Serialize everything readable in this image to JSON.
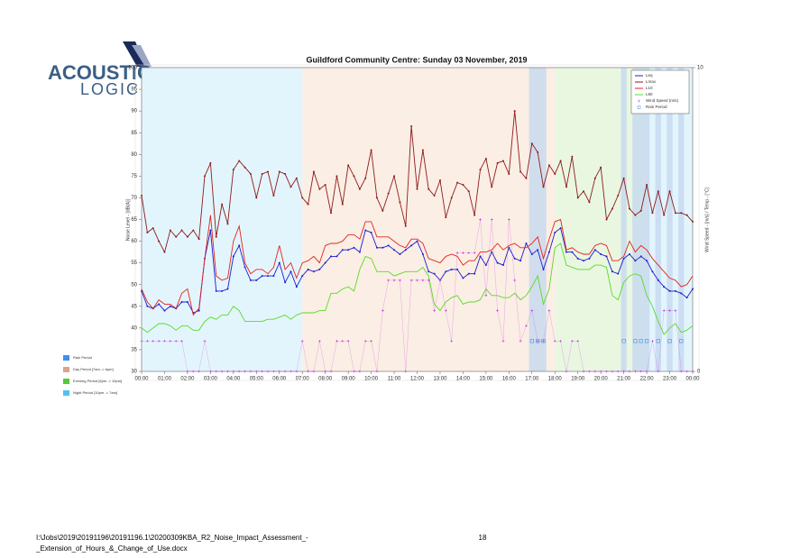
{
  "logo": {
    "line1": "ACOUSTIC",
    "line2": "LOGIC"
  },
  "chart_data": {
    "type": "line",
    "title": "Guildford Community Centre: Sunday 03 November, 2019",
    "y_label": "Noise Level - [dB(A)]",
    "y2_label": "Wind Speed - [m/s] / Temp - [°C]",
    "xlim": [
      0,
      24
    ],
    "xticks": [
      {
        "value": 0,
        "label": "00:00"
      },
      {
        "value": 1,
        "label": "01:00"
      },
      {
        "value": 2,
        "label": "02:00"
      },
      {
        "value": 3,
        "label": "03:00"
      },
      {
        "value": 4,
        "label": "04:00"
      },
      {
        "value": 5,
        "label": "05:00"
      },
      {
        "value": 6,
        "label": "06:00"
      },
      {
        "value": 7,
        "label": "07:00"
      },
      {
        "value": 8,
        "label": "08:00"
      },
      {
        "value": 9,
        "label": "09:00"
      },
      {
        "value": 10,
        "label": "10:00"
      },
      {
        "value": 11,
        "label": "11:00"
      },
      {
        "value": 12,
        "label": "12:00"
      },
      {
        "value": 13,
        "label": "13:00"
      },
      {
        "value": 14,
        "label": "14:00"
      },
      {
        "value": 15,
        "label": "15:00"
      },
      {
        "value": 16,
        "label": "16:00"
      },
      {
        "value": 17,
        "label": "17:00"
      },
      {
        "value": 18,
        "label": "18:00"
      },
      {
        "value": 19,
        "label": "19:00"
      },
      {
        "value": 20,
        "label": "20:00"
      },
      {
        "value": 21,
        "label": "21:00"
      },
      {
        "value": 22,
        "label": "22:00"
      },
      {
        "value": 23,
        "label": "23:00"
      },
      {
        "value": 24,
        "label": "00:00"
      }
    ],
    "ylim": [
      30,
      100
    ],
    "yticks": [
      30,
      35,
      40,
      45,
      50,
      55,
      60,
      65,
      70,
      75,
      80,
      85,
      90,
      95,
      100
    ],
    "y2lim": [
      0,
      10
    ],
    "y2ticks": [
      0,
      10
    ],
    "legend": "top-right",
    "periods": [
      {
        "name": "Day Period [7am -> 6pm]",
        "color": "#fbeee4",
        "key": "#d9a58a",
        "ranges": [
          [
            7,
            18
          ]
        ]
      },
      {
        "name": "Evening Period [6pm -> 10pm]",
        "color": "#e9f7e1",
        "key": "#59c63a",
        "ranges": [
          [
            18,
            22
          ]
        ]
      },
      {
        "name": "Night Period [10pm -> 7am]",
        "color": "#e3f5fc",
        "key": "#4fc4f0",
        "ranges": [
          [
            0,
            7
          ],
          [
            22,
            24
          ]
        ]
      }
    ],
    "x": [
      0,
      0.25,
      0.5,
      0.75,
      1,
      1.25,
      1.5,
      1.75,
      2,
      2.25,
      2.5,
      2.75,
      3,
      3.25,
      3.5,
      3.75,
      4,
      4.25,
      4.5,
      4.75,
      5,
      5.25,
      5.5,
      5.75,
      6,
      6.25,
      6.5,
      6.75,
      7,
      7.25,
      7.5,
      7.75,
      8,
      8.25,
      8.5,
      8.75,
      9,
      9.25,
      9.5,
      9.75,
      10,
      10.25,
      10.5,
      10.75,
      11,
      11.25,
      11.5,
      11.75,
      12,
      12.25,
      12.5,
      12.75,
      13,
      13.25,
      13.5,
      13.75,
      14,
      14.25,
      14.5,
      14.75,
      15,
      15.25,
      15.5,
      15.75,
      16,
      16.25,
      16.5,
      16.75,
      17,
      17.25,
      17.5,
      17.75,
      18,
      18.25,
      18.5,
      18.75,
      19,
      19.25,
      19.5,
      19.75,
      20,
      20.25,
      20.5,
      20.75,
      21,
      21.25,
      21.5,
      21.75,
      22,
      22.25,
      22.5,
      22.75,
      23,
      23.25,
      23.5,
      23.75,
      24
    ],
    "series": [
      {
        "name": "Leq",
        "color": "#1c1ccf",
        "marker": "circle",
        "values": [
          48.5,
          45,
          44.5,
          45.5,
          44,
          45,
          44.5,
          46,
          46,
          43.5,
          44,
          56,
          62.5,
          48.5,
          48.5,
          49,
          56.5,
          59,
          54,
          51,
          51,
          52,
          52,
          52,
          55,
          50.5,
          53,
          49.5,
          52,
          53.5,
          53,
          53.5,
          55,
          56.5,
          56.5,
          58,
          58,
          58.5,
          57.5,
          62.5,
          62,
          58.5,
          58.5,
          59,
          58,
          57,
          58,
          59,
          60,
          57,
          53,
          52.5,
          51,
          53,
          53.5,
          53.5,
          51.5,
          52.5,
          52.5,
          56.5,
          54.5,
          57.5,
          55,
          54.5,
          58.5,
          56,
          55.5,
          59.5,
          57,
          58,
          53.5,
          57.5,
          62,
          63,
          57.5,
          57.5,
          56,
          55.5,
          56,
          58,
          57,
          56.5,
          53,
          52.5,
          56,
          57,
          55.5,
          56.5,
          55.5,
          53,
          51,
          49.5,
          48.5,
          48.5,
          48,
          47,
          49
        ]
      },
      {
        "name": "Lmax",
        "color": "#8c1c1c",
        "marker": "circle",
        "values": [
          70.5,
          62,
          63,
          60,
          57.5,
          62.5,
          61,
          62.5,
          61,
          62.5,
          60.5,
          75,
          78,
          61,
          68.5,
          64,
          76.5,
          78.5,
          77,
          75.5,
          70,
          75.5,
          76,
          70.5,
          76,
          75.5,
          72.5,
          74.5,
          70,
          68.5,
          76,
          72,
          73,
          66.5,
          75,
          68.5,
          77.5,
          75,
          72,
          74.5,
          81,
          70,
          67,
          71,
          75,
          69,
          63.5,
          86.5,
          72,
          81,
          72,
          70.5,
          74,
          65.5,
          70,
          73.5,
          73,
          71.5,
          66,
          76.5,
          79,
          72.5,
          78,
          78.5,
          75.5,
          90,
          76,
          74.5,
          82.5,
          80.5,
          72.5,
          77.5,
          75.5,
          78.5,
          72.5,
          79.5,
          70,
          71.5,
          69,
          74.5,
          77,
          65,
          67.5,
          70.5,
          74.5,
          67.5,
          66,
          67,
          73,
          66.5,
          71.5,
          66,
          71.5,
          66.5,
          66.5,
          66,
          64.5
        ]
      },
      {
        "name": "L10",
        "color": "#e4231d",
        "marker": "none",
        "values": [
          49,
          46,
          44.5,
          46.5,
          45.5,
          45.5,
          44.5,
          48,
          49,
          43,
          44.5,
          56,
          66,
          52,
          51,
          51.5,
          60,
          63.5,
          55,
          52.5,
          53.5,
          53.5,
          52.5,
          54,
          59,
          53.5,
          55,
          51.5,
          55,
          55.5,
          56.5,
          55,
          59,
          59.5,
          59.5,
          60,
          61.5,
          61.5,
          60.5,
          64.5,
          64.5,
          61,
          61,
          61,
          60,
          59,
          58.5,
          60.5,
          60.5,
          59.5,
          56,
          55.5,
          55,
          56.5,
          57,
          56.5,
          54.5,
          55.5,
          55.5,
          57.5,
          57.5,
          58,
          59.5,
          58,
          59,
          59.5,
          58.5,
          58.5,
          59.5,
          61,
          56,
          60.5,
          64.5,
          65,
          58,
          58.5,
          57.5,
          57,
          57,
          59,
          59.5,
          59,
          55.5,
          55.5,
          56.5,
          60,
          57.5,
          59,
          58,
          56,
          54.5,
          53,
          51.5,
          51,
          49.5,
          50,
          52
        ]
      },
      {
        "name": "L90",
        "color": "#57dc24",
        "marker": "none",
        "values": [
          40,
          39,
          40,
          41,
          41,
          40.5,
          39.5,
          40.5,
          40.5,
          39.5,
          39.5,
          41.5,
          42.5,
          42,
          43,
          43,
          45,
          44,
          41.5,
          41.5,
          41.5,
          41.5,
          42,
          42,
          42.5,
          43,
          42,
          43,
          43.5,
          43.5,
          43.5,
          44,
          44,
          48,
          48,
          49,
          49.5,
          48.5,
          53.5,
          56.5,
          56,
          53,
          53,
          53,
          52,
          52.5,
          53,
          53,
          53,
          54,
          52,
          45.5,
          44,
          46,
          47,
          47.5,
          45.5,
          46,
          46,
          46.5,
          49,
          47.5,
          47.5,
          47,
          47,
          48,
          46.5,
          47.5,
          49.5,
          52,
          45.5,
          49,
          58.5,
          59.5,
          54.5,
          54,
          53.5,
          53.5,
          53.5,
          54.5,
          54.5,
          54,
          47.5,
          46.5,
          50.5,
          52,
          52.5,
          52,
          47.5,
          45,
          41.5,
          38.5,
          40,
          41,
          39,
          39.5,
          40.5
        ]
      },
      {
        "name": "Wind Speed (m/s)",
        "color": "#c93ee8",
        "marker": "plus",
        "axis": "y2",
        "values": [
          1,
          1,
          1,
          1,
          1,
          1,
          1,
          1,
          0,
          0,
          0,
          1,
          0,
          0,
          0,
          0,
          0,
          0,
          0,
          0,
          0,
          0,
          0,
          0,
          0,
          0,
          0,
          0,
          1,
          0,
          0,
          1,
          0,
          0,
          1,
          1,
          1,
          0,
          0,
          1,
          1,
          0,
          2,
          3,
          3,
          3,
          0,
          3,
          3,
          3,
          3,
          2,
          3,
          2,
          1,
          3.9,
          3.9,
          3.9,
          3.9,
          5,
          2.5,
          5,
          2,
          1,
          5,
          3,
          1,
          1.5,
          2,
          1,
          1,
          2,
          1,
          1,
          0,
          1,
          1,
          0,
          0,
          0,
          0,
          0,
          0,
          0,
          0,
          0,
          0,
          0,
          0,
          1,
          0,
          2,
          2,
          2,
          0,
          0,
          0
        ]
      },
      {
        "name": "Rain Period",
        "color": "#3d8ff0",
        "marker": "square",
        "axis": "y2",
        "values": [
          null,
          null,
          null,
          null,
          null,
          null,
          null,
          null,
          null,
          null,
          null,
          null,
          null,
          null,
          null,
          null,
          null,
          null,
          null,
          null,
          null,
          null,
          null,
          null,
          null,
          null,
          null,
          null,
          null,
          null,
          null,
          null,
          null,
          null,
          null,
          null,
          null,
          null,
          null,
          null,
          null,
          null,
          null,
          null,
          null,
          null,
          null,
          null,
          null,
          null,
          null,
          null,
          null,
          null,
          null,
          null,
          null,
          null,
          null,
          null,
          null,
          null,
          null,
          null,
          null,
          null,
          null,
          null,
          1,
          1,
          1,
          null,
          null,
          null,
          null,
          null,
          null,
          null,
          null,
          null,
          null,
          null,
          null,
          null,
          1,
          null,
          1,
          1,
          1,
          null,
          1,
          null,
          1,
          null,
          1,
          null,
          null
        ]
      }
    ]
  },
  "footer": {
    "path_line1": "I:\\Jobs\\2019\\20191196\\20191196.1\\20200309KBA_R2_Noise_Impact_Assessment_-",
    "path_line2": "_Extension_of_Hours_&_Change_of_Use.docx",
    "page": "18"
  }
}
